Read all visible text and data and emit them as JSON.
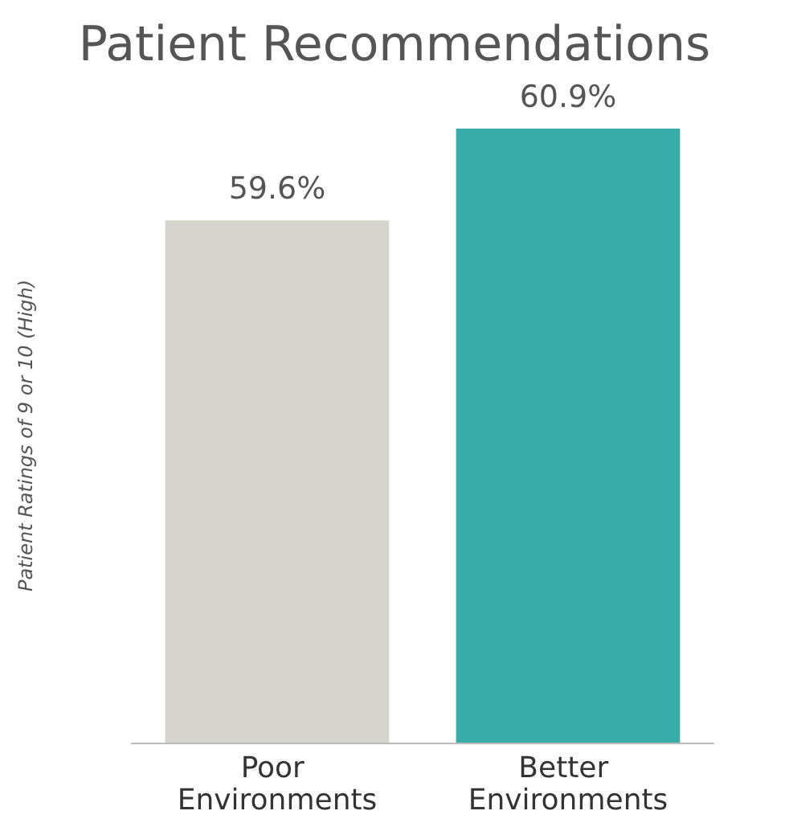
{
  "chart_data": {
    "type": "bar",
    "title": "Patient Recommendations",
    "ylabel": "Patient Ratings of 9 or 10 (High)",
    "categories": [
      "Poor Environments",
      "Better Environments"
    ],
    "values": [
      59.6,
      60.9
    ],
    "colors": [
      "#d5d5ce",
      "#3aaca7"
    ],
    "value_labels": [
      "59.6%",
      "60.9%"
    ],
    "ylim": [
      52.2,
      60.9
    ]
  }
}
